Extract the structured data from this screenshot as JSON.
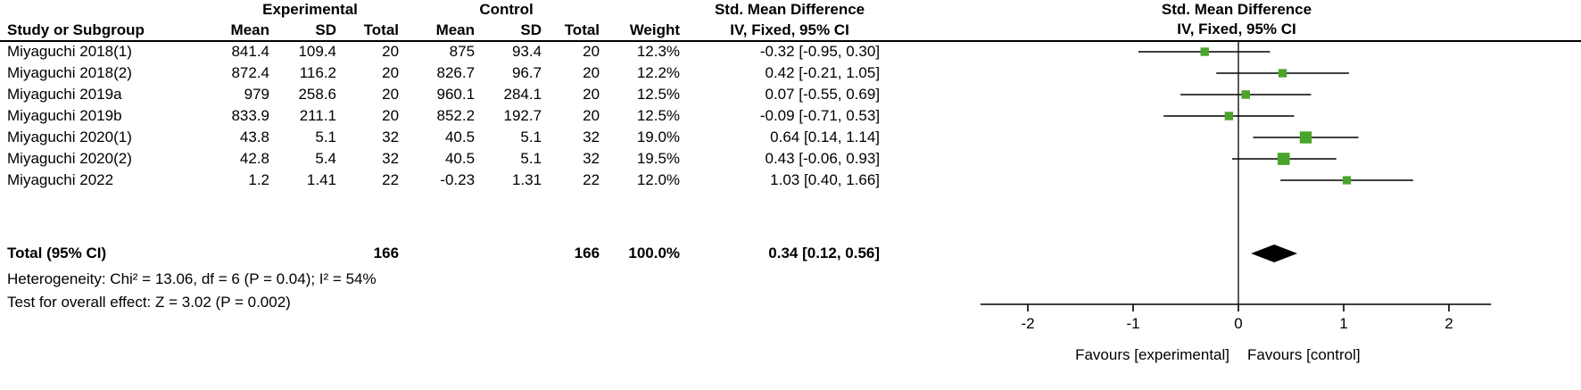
{
  "table": {
    "group_headers": {
      "experimental": "Experimental",
      "control": "Control",
      "smd": "Std. Mean Difference"
    },
    "col_headers": {
      "study": "Study or Subgroup",
      "mean": "Mean",
      "sd": "SD",
      "total": "Total",
      "weight": "Weight",
      "ci": "IV, Fixed, 95% CI"
    },
    "footer": {
      "heterogeneity": "Heterogeneity: Chi² = 13.06, df = 6 (P = 0.04); I² = 54%",
      "overall": "Test for overall effect: Z = 3.02 (P = 0.002)"
    }
  },
  "chart_data": {
    "type": "forest",
    "effect_label": "Std. Mean Difference",
    "method_label": "IV, Fixed, 95% CI",
    "x_ticks": [
      "-2",
      "-1",
      "0",
      "1",
      "2"
    ],
    "x_tick_values": [
      -2,
      -1,
      0,
      1,
      2
    ],
    "xlim": [
      -2.45,
      2.4
    ],
    "marker_color": "#4aa42c",
    "line_color": "#000000",
    "favours_left": "Favours [experimental]",
    "favours_right": "Favours [control]",
    "studies": [
      {
        "label": "Miyaguchi 2018(1)",
        "mean_e": "841.4",
        "sd_e": "109.4",
        "total_e": "20",
        "mean_c": "875",
        "sd_c": "93.4",
        "total_c": "20",
        "weight": 12.3,
        "weight_label": "12.3%",
        "est": -0.32,
        "lo": -0.95,
        "hi": 0.3,
        "ci_label": "-0.32 [-0.95, 0.30]"
      },
      {
        "label": "Miyaguchi 2018(2)",
        "mean_e": "872.4",
        "sd_e": "116.2",
        "total_e": "20",
        "mean_c": "826.7",
        "sd_c": "96.7",
        "total_c": "20",
        "weight": 12.2,
        "weight_label": "12.2%",
        "est": 0.42,
        "lo": -0.21,
        "hi": 1.05,
        "ci_label": "0.42 [-0.21, 1.05]"
      },
      {
        "label": "Miyaguchi 2019a",
        "mean_e": "979",
        "sd_e": "258.6",
        "total_e": "20",
        "mean_c": "960.1",
        "sd_c": "284.1",
        "total_c": "20",
        "weight": 12.5,
        "weight_label": "12.5%",
        "est": 0.07,
        "lo": -0.55,
        "hi": 0.69,
        "ci_label": "0.07 [-0.55, 0.69]"
      },
      {
        "label": "Miyaguchi 2019b",
        "mean_e": "833.9",
        "sd_e": "211.1",
        "total_e": "20",
        "mean_c": "852.2",
        "sd_c": "192.7",
        "total_c": "20",
        "weight": 12.5,
        "weight_label": "12.5%",
        "est": -0.09,
        "lo": -0.71,
        "hi": 0.53,
        "ci_label": "-0.09 [-0.71, 0.53]"
      },
      {
        "label": "Miyaguchi 2020(1)",
        "mean_e": "43.8",
        "sd_e": "5.1",
        "total_e": "32",
        "mean_c": "40.5",
        "sd_c": "5.1",
        "total_c": "32",
        "weight": 19.0,
        "weight_label": "19.0%",
        "est": 0.64,
        "lo": 0.14,
        "hi": 1.14,
        "ci_label": "0.64 [0.14, 1.14]"
      },
      {
        "label": "Miyaguchi 2020(2)",
        "mean_e": "42.8",
        "sd_e": "5.4",
        "total_e": "32",
        "mean_c": "40.5",
        "sd_c": "5.1",
        "total_c": "32",
        "weight": 19.5,
        "weight_label": "19.5%",
        "est": 0.43,
        "lo": -0.06,
        "hi": 0.93,
        "ci_label": "0.43 [-0.06, 0.93]"
      },
      {
        "label": "Miyaguchi 2022",
        "mean_e": "1.2",
        "sd_e": "1.41",
        "total_e": "22",
        "mean_c": "-0.23",
        "sd_c": "1.31",
        "total_c": "22",
        "weight": 12.0,
        "weight_label": "12.0%",
        "est": 1.03,
        "lo": 0.4,
        "hi": 1.66,
        "ci_label": "1.03 [0.40, 1.66]"
      }
    ],
    "total": {
      "label": "Total (95% CI)",
      "total_e": "166",
      "total_c": "166",
      "weight_label": "100.0%",
      "est": 0.34,
      "lo": 0.12,
      "hi": 0.56,
      "ci_label": "0.34 [0.12, 0.56]"
    }
  }
}
